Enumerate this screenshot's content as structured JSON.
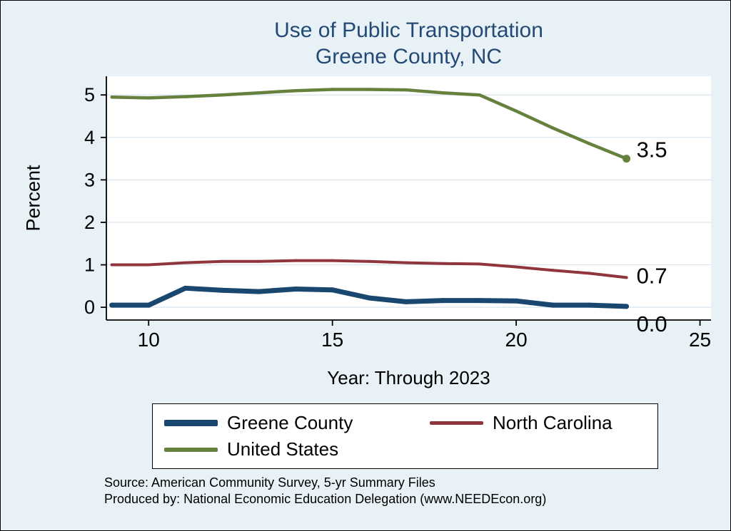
{
  "styles": {
    "background": "#e8f1f6",
    "title_color": "#234a77",
    "grid_color": "#d9e5ee",
    "axis_color": "#000000",
    "plot_background": "#ffffff"
  },
  "chart_data": {
    "type": "line",
    "title_lines": [
      "Use of Public Transportation",
      "Greene County, NC"
    ],
    "xlabel": "Year: Through 2023",
    "ylabel": "Percent",
    "x": [
      9,
      10,
      11,
      12,
      13,
      14,
      15,
      16,
      17,
      18,
      19,
      20,
      21,
      22,
      23
    ],
    "series": [
      {
        "name": "Greene County",
        "color": "#1a476f",
        "width": 7,
        "values": [
          0.05,
          0.05,
          0.45,
          0.4,
          0.37,
          0.43,
          0.41,
          0.22,
          0.13,
          0.16,
          0.16,
          0.15,
          0.05,
          0.05,
          0.02
        ],
        "end_label": "0.0",
        "end_marker": false
      },
      {
        "name": "North Carolina",
        "color": "#90353b",
        "width": 4,
        "values": [
          1.0,
          1.0,
          1.05,
          1.08,
          1.08,
          1.1,
          1.1,
          1.08,
          1.05,
          1.03,
          1.02,
          0.95,
          0.87,
          0.8,
          0.7
        ],
        "end_label": "0.7",
        "end_marker": false
      },
      {
        "name": "United States",
        "color": "#66803d",
        "width": 4.5,
        "values": [
          4.95,
          4.93,
          4.96,
          5.0,
          5.05,
          5.1,
          5.13,
          5.13,
          5.12,
          5.05,
          5.0,
          4.62,
          4.22,
          3.85,
          3.5
        ],
        "end_label": "3.5",
        "end_marker": true
      }
    ],
    "xticks": [
      10,
      15,
      20,
      25
    ],
    "yticks": [
      0,
      1,
      2,
      3,
      4,
      5
    ],
    "xlim": [
      8.85,
      25.3
    ],
    "ylim": [
      -0.3,
      5.44
    ],
    "grid": "horizontal",
    "legend_position": "bottom"
  },
  "footer": {
    "source_line": "Source: American Community Survey, 5-yr Summary Files",
    "produced_line": "Produced by: National Economic Education Delegation (www.NEEDEcon.org)"
  }
}
